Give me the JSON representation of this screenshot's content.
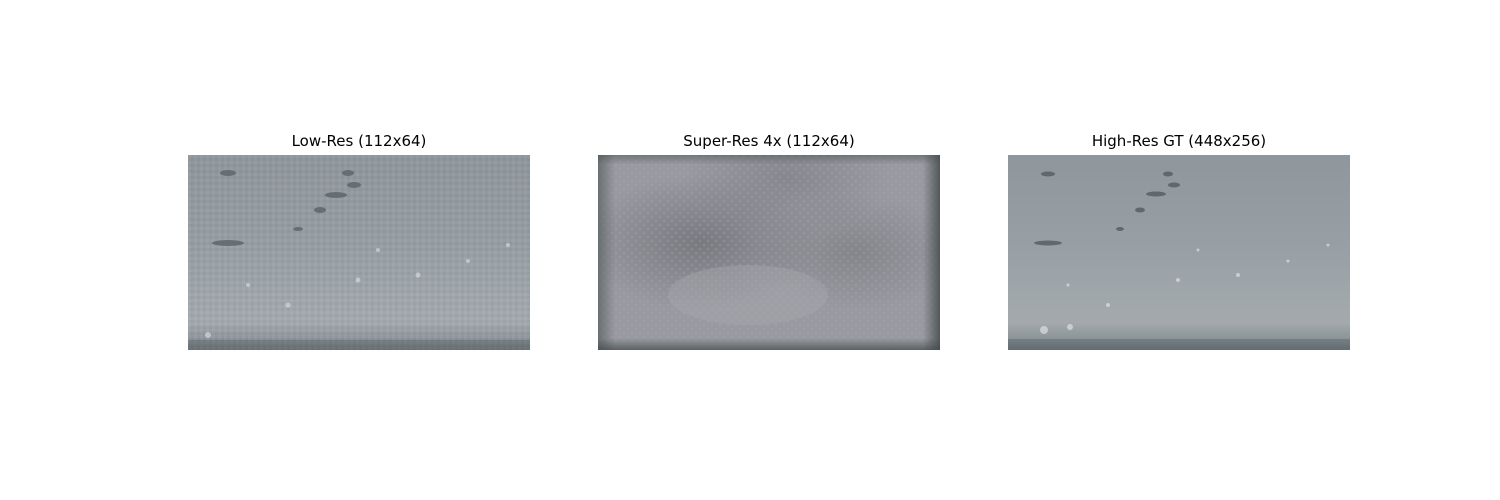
{
  "figure": {
    "panels": [
      {
        "title": "Low-Res (112x64)"
      },
      {
        "title": "Super-Res 4x (112x64)"
      },
      {
        "title": "High-Res GT (448x256)"
      }
    ]
  }
}
